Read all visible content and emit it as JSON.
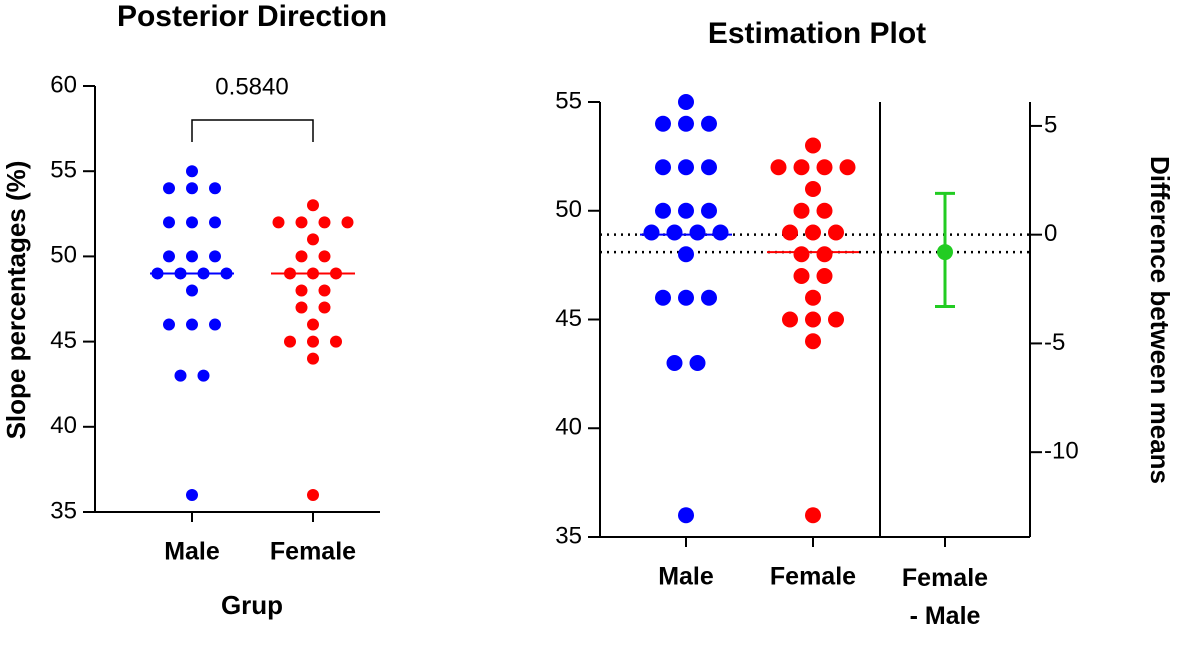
{
  "chart_data": [
    {
      "type": "dot",
      "title": "Posterior Direction",
      "ylabel": "Slope percentages (%)",
      "xlabel": "Grup",
      "categories": [
        "Male",
        "Female"
      ],
      "values": [
        [
          55,
          54,
          54,
          54,
          52,
          52,
          52,
          50,
          50,
          50,
          49,
          49,
          49,
          49,
          48,
          46,
          46,
          46,
          43,
          43,
          36
        ],
        [
          53,
          52,
          52,
          52,
          52,
          51,
          50,
          50,
          49,
          49,
          49,
          48,
          48,
          47,
          47,
          46,
          45,
          45,
          45,
          44,
          36
        ]
      ],
      "colors": [
        "#0000ff",
        "#ff0000"
      ],
      "center_lines": [
        49,
        49
      ],
      "annotation": "0.5840",
      "ylim": [
        35,
        60
      ],
      "yticks": [
        35,
        40,
        45,
        50,
        55,
        60
      ]
    },
    {
      "type": "estimation",
      "title": "Estimation Plot",
      "y2label": "Difference between means",
      "categories": [
        "Male",
        "Female",
        "Female - Male"
      ],
      "values": [
        [
          55,
          54,
          54,
          54,
          52,
          52,
          52,
          50,
          50,
          50,
          49,
          49,
          49,
          49,
          48,
          46,
          46,
          46,
          43,
          43,
          36
        ],
        [
          53,
          52,
          52,
          52,
          52,
          51,
          50,
          50,
          49,
          49,
          49,
          48,
          48,
          47,
          47,
          46,
          45,
          45,
          45,
          44,
          36
        ]
      ],
      "colors": [
        "#0000ff",
        "#ff0000"
      ],
      "means": [
        48.9,
        48.1
      ],
      "difference": {
        "value": -0.8,
        "ci": [
          -3.3,
          1.9
        ],
        "color": "#22cc22"
      },
      "ylim": [
        35,
        55
      ],
      "yticks": [
        35,
        40,
        45,
        50,
        55
      ],
      "y2lim": [
        -13.9,
        6.1
      ],
      "y2ticks": [
        -10,
        -5,
        0,
        5
      ]
    }
  ]
}
